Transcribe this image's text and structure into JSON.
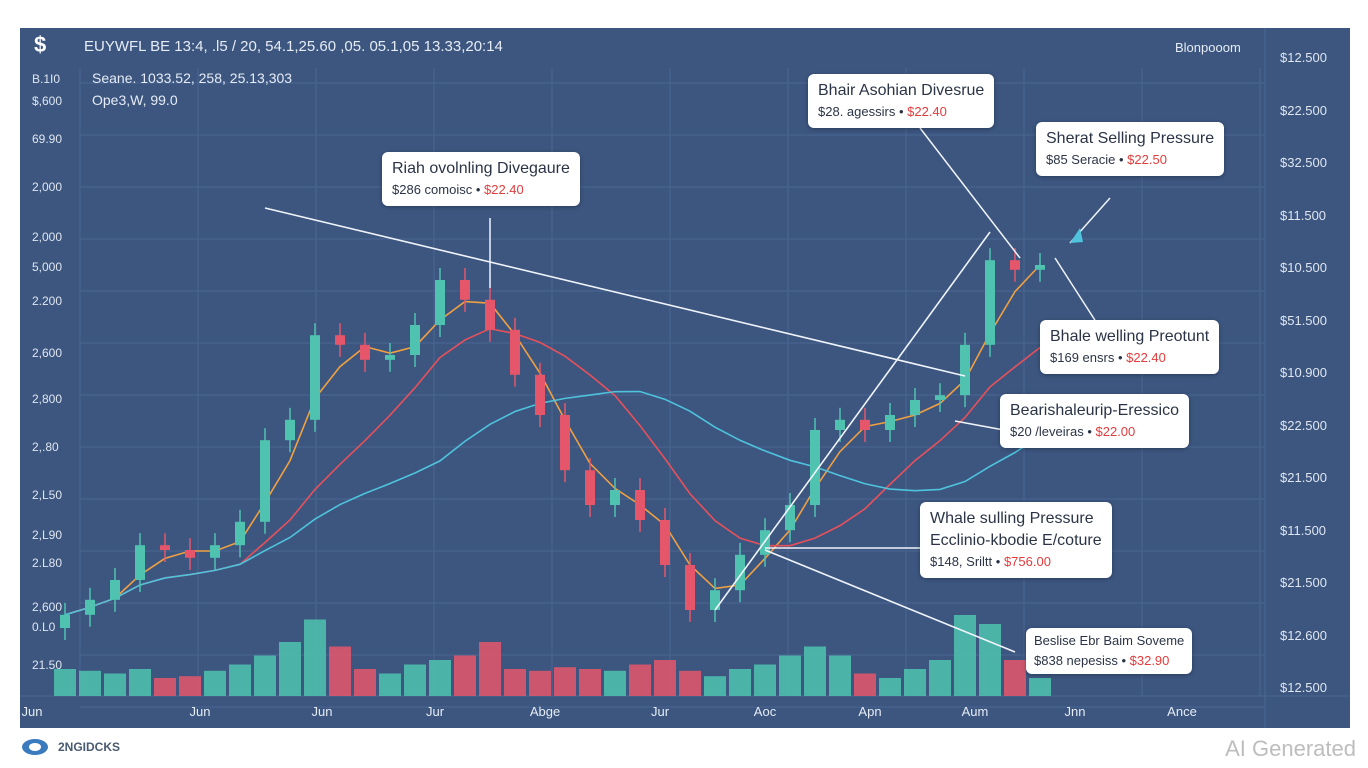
{
  "header": {
    "ticker_line": "EUYWFL BE 13:4, .l5 / 20, 54.1,25.60 ,05.  05.1,05 13.33,20:14",
    "line2": "Seane. 1033.52, 258, 25.13,303",
    "line3": "Ope3,W, 99.0",
    "source": "Blonpooom"
  },
  "left_axis": [
    "B.1I0",
    "$,600",
    "69.90",
    "2,000",
    "2,000",
    "5,000",
    "2.200",
    "2,600",
    "2,800",
    "2,.80",
    "2,L50",
    "2,L90",
    "2.L80",
    "2,600",
    "0.L0",
    "21.50"
  ],
  "right_axis": [
    "$12.500",
    "$22.500",
    "$32.500",
    "$11.500",
    "$10.500",
    "$51.500",
    "$10.900",
    "$22.500",
    "$21.500",
    "$11.500",
    "$21.500",
    "$12.600",
    "$12.500"
  ],
  "x_labels": [
    "Jun",
    "Jun",
    "Jun",
    "Jur",
    "Abge",
    "Jur",
    "Aoc",
    "Apn",
    "Aum",
    "Jnn",
    "Ance"
  ],
  "callouts": [
    {
      "title": "Riah ovolnling Divegaure",
      "sub": "$286 comoisc",
      "price": "$22.40"
    },
    {
      "title": "Bhair Asohian Divesrue",
      "sub": "$28. agessirs",
      "price": "$22.40"
    },
    {
      "title": "Sherat Selling Pressure",
      "sub": "$85 Seracie",
      "price": "$22.50"
    },
    {
      "title": "Bhale welling Preotunt",
      "sub": "$169 ensrs",
      "price": "$22.40"
    },
    {
      "title": "Bearishaleurip-Eressico",
      "sub": "$20 /leveiras",
      "price": "$22.00"
    },
    {
      "title": "Whale sulling Pressure",
      "title2": "Ecclinio-kbodie E/coture",
      "sub": "$148, Sriltt",
      "price": "$756.00"
    },
    {
      "title": "Beslise Ebr Baim Soveme",
      "sub": "$838 nepesiss",
      "price": "$32.90",
      "small": true
    }
  ],
  "footer": {
    "logo": "2NGIDCKS",
    "watermark": "AI Generated"
  },
  "colors": {
    "bg": "#3c5680",
    "up": "#4fc3b0",
    "down": "#e5566a",
    "ma": [
      "#f0a040",
      "#e8505a",
      "#4fc3dc"
    ]
  },
  "chart_data": {
    "type": "candlestick",
    "ylim": [
      0,
      110
    ],
    "grid": true,
    "open": [
      12,
      14.2,
      16.7,
      20,
      25.8,
      25,
      23.7,
      25.8,
      29.7,
      43.3,
      46.7,
      60.8,
      59.2,
      56.7,
      57.5,
      62.5,
      70,
      66.7,
      61.7,
      54.2,
      47.5,
      38.3,
      32.5,
      35,
      30,
      22.5,
      15,
      18.3,
      24.2,
      28.3,
      32.5,
      45,
      46.7,
      45,
      47.5,
      50,
      50.8,
      59.2,
      73.3,
      71.7
    ],
    "high": [
      16.2,
      18.7,
      22,
      27.8,
      27.8,
      27,
      27.8,
      31.7,
      45.3,
      48.7,
      62.8,
      62.8,
      61.2,
      59.5,
      64.5,
      72,
      72,
      68.7,
      63.7,
      56.2,
      49.5,
      40.3,
      37,
      37,
      32,
      24.5,
      20.3,
      26.2,
      30.3,
      34.5,
      47,
      48.7,
      48.7,
      49.5,
      52,
      52.8,
      61.2,
      75.3,
      75.3,
      74.5
    ],
    "low": [
      10,
      12.2,
      14.7,
      18,
      23,
      21.7,
      21.7,
      23.8,
      27.7,
      41.3,
      44.7,
      57.2,
      54.7,
      54.7,
      55.5,
      60.5,
      64.7,
      59.7,
      52.2,
      45.5,
      36.3,
      30.5,
      30.5,
      28,
      20.5,
      13,
      13,
      16.3,
      22.2,
      26.3,
      30.5,
      43,
      43,
      43,
      45.5,
      48,
      48.8,
      57.2,
      69.7,
      69.7
    ],
    "close": [
      14.2,
      16.7,
      20,
      25.8,
      25,
      23.7,
      25.8,
      29.7,
      43.3,
      46.7,
      60.8,
      59.2,
      56.7,
      57.5,
      62.5,
      70,
      66.7,
      61.7,
      54.2,
      47.5,
      38.3,
      32.5,
      35,
      30,
      22.5,
      15,
      18.3,
      24.2,
      28.3,
      32.5,
      45,
      46.7,
      45,
      47.5,
      50,
      50.8,
      59.2,
      73.3,
      71.7,
      72.5
    ],
    "volume": [
      30,
      28,
      25,
      30,
      20,
      22,
      28,
      35,
      45,
      60,
      85,
      55,
      30,
      25,
      35,
      40,
      45,
      60,
      30,
      28,
      32,
      30,
      28,
      35,
      40,
      28,
      22,
      30,
      35,
      45,
      55,
      45,
      25,
      20,
      30,
      40,
      90,
      80,
      40,
      20
    ],
    "ma_windows": [
      3,
      8,
      16
    ],
    "trendlines": [
      {
        "from": [
          8,
          82
        ],
        "to": [
          36,
          54
        ]
      },
      {
        "from": [
          26,
          15
        ],
        "to": [
          37,
          78
        ]
      },
      {
        "from": [
          28,
          25
        ],
        "to": [
          38,
          8
        ]
      }
    ]
  }
}
